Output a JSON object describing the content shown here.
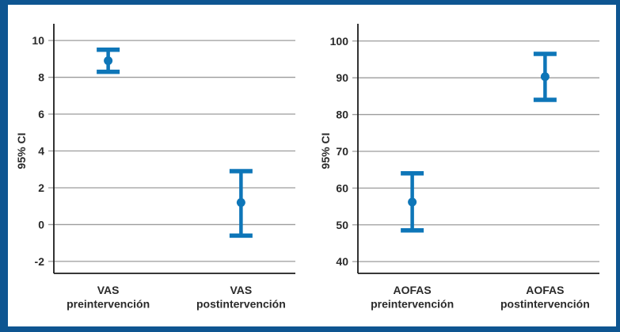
{
  "figure": {
    "background": "#ffffff",
    "frame_color": "#0e5591"
  },
  "colors": {
    "marker_blue": "#0e76b8",
    "gridline_gray": "#9c9c9c",
    "axis_black": "#1c1c1c",
    "text_dark": "#2a2a2a"
  },
  "chart_data": [
    {
      "type": "errorbar",
      "panel": "left",
      "title": "",
      "xlabel": "",
      "ylabel": "95% CI",
      "categories": [
        "VAS\npreintervención",
        "VAS\npostintervención"
      ],
      "points": [
        {
          "category": "VAS preintervención",
          "mean": 8.9,
          "ci_low": 8.3,
          "ci_high": 9.5
        },
        {
          "category": "VAS postintervención",
          "mean": 1.2,
          "ci_low": -0.6,
          "ci_high": 2.9
        }
      ],
      "yticks": [
        10,
        8,
        6,
        4,
        2,
        0,
        -2
      ],
      "ylim": [
        -2.65,
        10.65
      ],
      "grid": true,
      "legend": "none"
    },
    {
      "type": "errorbar",
      "panel": "right",
      "title": "",
      "xlabel": "",
      "ylabel": "95% CI",
      "categories": [
        "AOFAS\npreintervención",
        "AOFAS\npostintervención"
      ],
      "points": [
        {
          "category": "AOFAS preintervención",
          "mean": 56.2,
          "ci_low": 48.5,
          "ci_high": 64.0
        },
        {
          "category": "AOFAS postintervención",
          "mean": 90.3,
          "ci_low": 84.0,
          "ci_high": 96.5
        }
      ],
      "yticks": [
        100,
        90,
        80,
        70,
        60,
        50,
        40
      ],
      "ylim": [
        36.8,
        103.4
      ],
      "grid": true,
      "legend": "none"
    }
  ]
}
